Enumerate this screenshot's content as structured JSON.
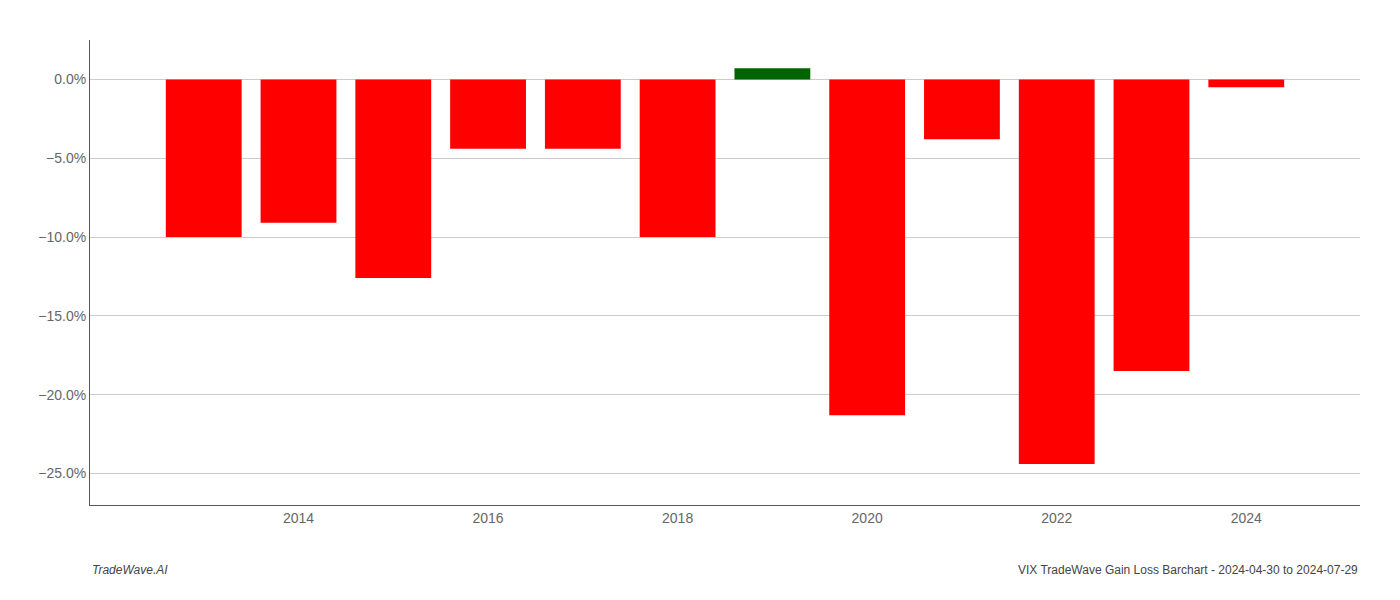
{
  "chart_data": {
    "type": "bar",
    "x": [
      2013,
      2014,
      2015,
      2016,
      2017,
      2018,
      2019,
      2020,
      2021,
      2022,
      2023,
      2024
    ],
    "values": [
      -0.1,
      -0.091,
      -0.126,
      -0.044,
      -0.044,
      -0.1,
      0.007,
      -0.213,
      -0.038,
      -0.244,
      -0.185,
      -0.005
    ],
    "colors": [
      "#ff0000",
      "#ff0000",
      "#ff0000",
      "#ff0000",
      "#ff0000",
      "#ff0000",
      "#006400",
      "#ff0000",
      "#ff0000",
      "#ff0000",
      "#ff0000",
      "#ff0000"
    ],
    "xlim": [
      2011.8,
      2025.2
    ],
    "xticks": [
      2014,
      2016,
      2018,
      2020,
      2022,
      2024
    ],
    "ylim": [
      -0.27,
      0.025
    ],
    "yticks": [
      {
        "value": 0.0,
        "label": "0.0%"
      },
      {
        "value": -0.05,
        "label": "−5.0%"
      },
      {
        "value": -0.1,
        "label": "−10.0%"
      },
      {
        "value": -0.15,
        "label": "−15.0%"
      },
      {
        "value": -0.2,
        "label": "−20.0%"
      },
      {
        "value": -0.25,
        "label": "−25.0%"
      }
    ],
    "grid": true,
    "annotations": [
      "TradeWave.AI",
      "VIX TradeWave Gain Loss Barchart - 2024-04-30 to 2024-07-29"
    ]
  }
}
